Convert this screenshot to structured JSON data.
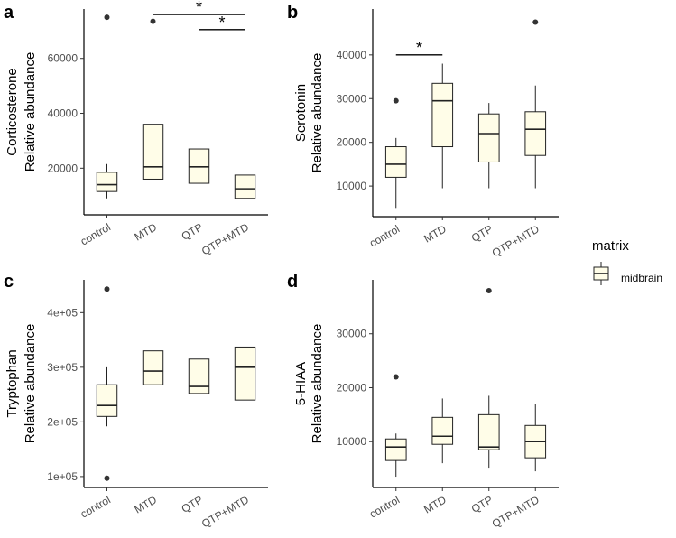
{
  "legend": {
    "title": "matrix",
    "entries": [
      {
        "label": "midbrain",
        "fill": "#fffde8"
      }
    ]
  },
  "colors": {
    "box_fill": "#fffde8",
    "box_stroke": "#222222",
    "outlier": "#333333"
  },
  "chart_data": [
    {
      "panel": "a",
      "type": "boxplot",
      "ylabel_lines": [
        "Corticosterone",
        "Relative abundance"
      ],
      "categories": [
        "control",
        "MTD",
        "QTP",
        "QTP+MTD"
      ],
      "ylim": [
        3000,
        78000
      ],
      "yticks": [
        20000,
        40000,
        60000
      ],
      "ytick_labels": [
        "20000",
        "40000",
        "60000"
      ],
      "boxes": [
        {
          "category": "control",
          "lower_whisker": 9000,
          "q1": 11500,
          "median": 14000,
          "q3": 18500,
          "upper_whisker": 21500,
          "outliers": [
            75000
          ]
        },
        {
          "category": "MTD",
          "lower_whisker": 12000,
          "q1": 16000,
          "median": 20500,
          "q3": 36000,
          "upper_whisker": 52500,
          "outliers": [
            73500
          ]
        },
        {
          "category": "QTP",
          "lower_whisker": 11500,
          "q1": 14500,
          "median": 20500,
          "q3": 27000,
          "upper_whisker": 44000,
          "outliers": []
        },
        {
          "category": "QTP+MTD",
          "lower_whisker": 5000,
          "q1": 9000,
          "median": 12500,
          "q3": 17500,
          "upper_whisker": 26000,
          "outliers": []
        }
      ],
      "significance": [
        {
          "from": "MTD",
          "to": "QTP+MTD",
          "label": "*",
          "y": 76000
        },
        {
          "from": "QTP",
          "to": "QTP+MTD",
          "label": "*",
          "y": 70500
        }
      ]
    },
    {
      "panel": "b",
      "type": "boxplot",
      "ylabel_lines": [
        "Serotonin",
        "Relative abundance"
      ],
      "categories": [
        "control",
        "MTD",
        "QTP",
        "QTP+MTD"
      ],
      "ylim": [
        3000,
        50500
      ],
      "yticks": [
        10000,
        20000,
        30000,
        40000
      ],
      "ytick_labels": [
        "10000",
        "20000",
        "30000",
        "40000"
      ],
      "boxes": [
        {
          "category": "control",
          "lower_whisker": 5000,
          "q1": 12000,
          "median": 15000,
          "q3": 19000,
          "upper_whisker": 21000,
          "outliers": [
            29500
          ]
        },
        {
          "category": "MTD",
          "lower_whisker": 9500,
          "q1": 19000,
          "median": 29500,
          "q3": 33500,
          "upper_whisker": 38000,
          "outliers": []
        },
        {
          "category": "QTP",
          "lower_whisker": 9500,
          "q1": 15500,
          "median": 22000,
          "q3": 26500,
          "upper_whisker": 29000,
          "outliers": []
        },
        {
          "category": "QTP+MTD",
          "lower_whisker": 9500,
          "q1": 17000,
          "median": 23000,
          "q3": 27000,
          "upper_whisker": 33000,
          "outliers": [
            47500
          ]
        }
      ],
      "significance": [
        {
          "from": "control",
          "to": "MTD",
          "label": "*",
          "y": 40000
        }
      ]
    },
    {
      "panel": "c",
      "type": "boxplot",
      "ylabel_lines": [
        "Tryptophan",
        "Relative abundance"
      ],
      "categories": [
        "control",
        "MTD",
        "QTP",
        "QTP+MTD"
      ],
      "ylim": [
        80000,
        460000
      ],
      "yticks": [
        100000,
        200000,
        300000,
        400000
      ],
      "ytick_labels": [
        "1e+05",
        "2e+05",
        "3e+05",
        "4e+05"
      ],
      "boxes": [
        {
          "category": "control",
          "lower_whisker": 192000,
          "q1": 210000,
          "median": 230000,
          "q3": 268000,
          "upper_whisker": 300000,
          "outliers": [
            443000,
            97000
          ]
        },
        {
          "category": "MTD",
          "lower_whisker": 187000,
          "q1": 268000,
          "median": 293000,
          "q3": 330000,
          "upper_whisker": 403000,
          "outliers": []
        },
        {
          "category": "QTP",
          "lower_whisker": 243000,
          "q1": 252000,
          "median": 265000,
          "q3": 315000,
          "upper_whisker": 400000,
          "outliers": []
        },
        {
          "category": "QTP+MTD",
          "lower_whisker": 224000,
          "q1": 240000,
          "median": 300000,
          "q3": 337000,
          "upper_whisker": 390000,
          "outliers": []
        }
      ],
      "significance": []
    },
    {
      "panel": "d",
      "type": "boxplot",
      "ylabel_lines": [
        "5-HIAA",
        "Relative abundance"
      ],
      "categories": [
        "control",
        "MTD",
        "QTP",
        "QTP+MTD"
      ],
      "ylim": [
        1500,
        40000
      ],
      "yticks": [
        10000,
        20000,
        30000
      ],
      "ytick_labels": [
        "10000",
        "20000",
        "30000"
      ],
      "boxes": [
        {
          "category": "control",
          "lower_whisker": 3500,
          "q1": 6500,
          "median": 9000,
          "q3": 10500,
          "upper_whisker": 11500,
          "outliers": [
            22000
          ]
        },
        {
          "category": "MTD",
          "lower_whisker": 6000,
          "q1": 9500,
          "median": 11000,
          "q3": 14500,
          "upper_whisker": 18000,
          "outliers": []
        },
        {
          "category": "QTP",
          "lower_whisker": 5000,
          "q1": 8500,
          "median": 9000,
          "q3": 15000,
          "upper_whisker": 18500,
          "outliers": [
            38000
          ]
        },
        {
          "category": "QTP+MTD",
          "lower_whisker": 4500,
          "q1": 7000,
          "median": 10000,
          "q3": 13000,
          "upper_whisker": 17000,
          "outliers": []
        }
      ],
      "significance": []
    }
  ]
}
